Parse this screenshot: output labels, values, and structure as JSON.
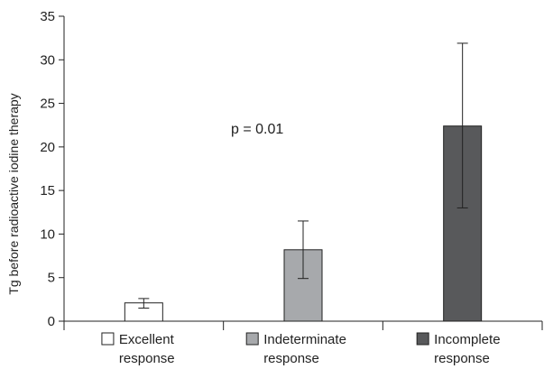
{
  "chart_data": {
    "type": "bar",
    "categories": [
      [
        "Excellent",
        "response"
      ],
      [
        "Indeterminate",
        "response"
      ],
      [
        "Incomplete",
        "response"
      ]
    ],
    "values": [
      2.1,
      8.2,
      22.4
    ],
    "error_low": [
      1.5,
      4.9,
      13.0
    ],
    "error_high": [
      2.6,
      11.5,
      31.9
    ],
    "bar_colors": [
      "#ffffff",
      "#a7a9ac",
      "#58595b"
    ],
    "ylabel": "Tg before radioactive iodine therapy",
    "ylim": [
      0,
      35
    ],
    "yticks": [
      0,
      5,
      10,
      15,
      20,
      25,
      30,
      35
    ],
    "annotation": "p = 0.01",
    "grid": false
  }
}
